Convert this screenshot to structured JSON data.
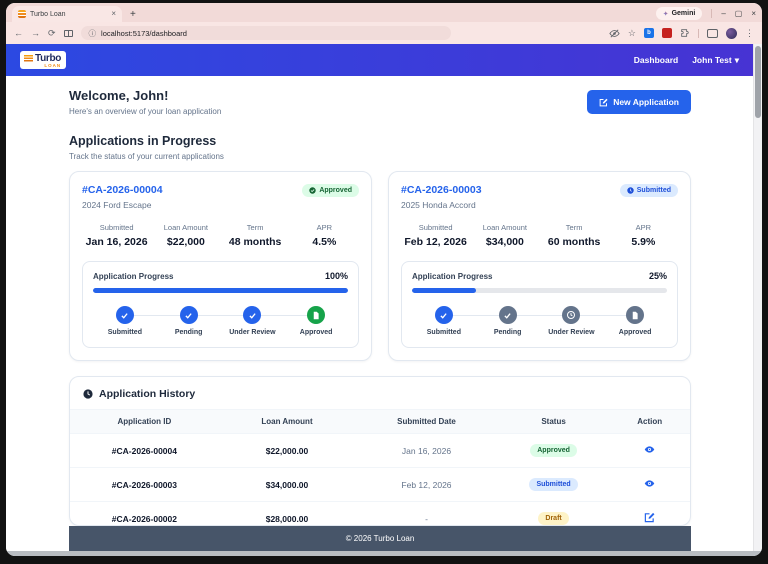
{
  "browser": {
    "tab_title": "Turbo Loan",
    "url": "localhost:5173/dashboard",
    "gemini_label": "Gemini"
  },
  "icons": {
    "back": "←",
    "forward": "→",
    "reload": "⟳",
    "info": "ⓘ",
    "star": "☆",
    "more": "⋮",
    "minimize": "–",
    "maximize": "▢",
    "close": "×",
    "close_tab": "×",
    "new_tab": "+",
    "caret": "▾",
    "gemini_spark": "✦",
    "ext_b": "b"
  },
  "navbar": {
    "brand": "Turbo",
    "brand_sub": "LOAN",
    "links": [
      {
        "label": "Dashboard"
      },
      {
        "label": "John Test"
      }
    ]
  },
  "welcome": {
    "title": "Welcome, John!",
    "subtitle": "Here's an overview of your loan application",
    "new_application_label": "New Application"
  },
  "applications_section": {
    "title": "Applications in Progress",
    "subtitle": "Track the status of your current applications",
    "cards": [
      {
        "id": "#CA-2026-00004",
        "vehicle": "2024 Ford Escape",
        "status": "Approved",
        "stats": [
          {
            "label": "Submitted",
            "value": "Jan 16, 2026"
          },
          {
            "label": "Loan Amount",
            "value": "$22,000"
          },
          {
            "label": "Term",
            "value": "48 months"
          },
          {
            "label": "APR",
            "value": "4.5%"
          }
        ],
        "progress_label": "Application Progress",
        "progress_percent": "100%",
        "progress_value": 100,
        "steps": [
          {
            "label": "Submitted",
            "icon": "check",
            "state": "done"
          },
          {
            "label": "Pending",
            "icon": "check",
            "state": "done"
          },
          {
            "label": "Under Review",
            "icon": "check",
            "state": "done"
          },
          {
            "label": "Approved",
            "icon": "document",
            "state": "approved"
          }
        ]
      },
      {
        "id": "#CA-2026-00003",
        "vehicle": "2025 Honda Accord",
        "status": "Submitted",
        "stats": [
          {
            "label": "Submitted",
            "value": "Feb 12, 2026"
          },
          {
            "label": "Loan Amount",
            "value": "$34,000"
          },
          {
            "label": "Term",
            "value": "60 months"
          },
          {
            "label": "APR",
            "value": "5.9%"
          }
        ],
        "progress_label": "Application Progress",
        "progress_percent": "25%",
        "progress_value": 25,
        "steps": [
          {
            "label": "Submitted",
            "icon": "check",
            "state": "done"
          },
          {
            "label": "Pending",
            "icon": "check",
            "state": "pending"
          },
          {
            "label": "Under Review",
            "icon": "clock",
            "state": "pending"
          },
          {
            "label": "Approved",
            "icon": "document",
            "state": "pending"
          }
        ]
      }
    ]
  },
  "history": {
    "title": "Application History",
    "columns": [
      "Application ID",
      "Loan Amount",
      "Submitted Date",
      "Status",
      "Action"
    ],
    "rows": [
      {
        "id": "#CA-2026-00004",
        "amount": "$22,000.00",
        "date": "Jan 16, 2026",
        "status": "Approved",
        "action": "view"
      },
      {
        "id": "#CA-2026-00003",
        "amount": "$34,000.00",
        "date": "Feb 12, 2026",
        "status": "Submitted",
        "action": "view"
      },
      {
        "id": "#CA-2026-00002",
        "amount": "$28,000.00",
        "date": "-",
        "status": "Draft",
        "action": "edit"
      }
    ]
  },
  "footer": {
    "text": "© 2026 Turbo Loan"
  },
  "colors": {
    "accent_blue": "#2563eb",
    "header_gradient_start": "#2c49e2",
    "header_gradient_end": "#4733d3",
    "approved_bg": "#dcfce7",
    "approved_text": "#166534",
    "submitted_bg": "#dbeafe",
    "submitted_text": "#1d4ed8",
    "draft_bg": "#fef3c7",
    "draft_text": "#a16207",
    "footer_bg": "#475569",
    "step_done": "#2563eb",
    "step_approved": "#16a34a",
    "step_pending": "#64748b"
  }
}
